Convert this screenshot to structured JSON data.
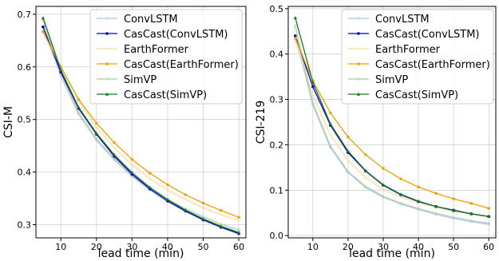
{
  "chart_data": [
    {
      "type": "line",
      "xlabel": "lead time (min)",
      "ylabel": "CSI-M",
      "xlim": [
        3,
        62
      ],
      "ylim": [
        0.275,
        0.715
      ],
      "xticks": [
        10,
        20,
        30,
        40,
        50,
        60
      ],
      "yticks": [
        0.3,
        0.4,
        0.5,
        0.6,
        0.7
      ],
      "ytick_labels": [
        "0.3",
        "0.4",
        "0.5",
        "0.6",
        "0.7"
      ],
      "grid": true,
      "legend_position": "top-right",
      "x": [
        5,
        10,
        15,
        20,
        25,
        30,
        35,
        40,
        45,
        50,
        55,
        60
      ],
      "series": [
        {
          "name": "ConvLSTM",
          "color": "#a9b7f0",
          "faded": true,
          "marker": "circle",
          "values": [
            0.676,
            0.583,
            0.51,
            0.461,
            0.424,
            0.392,
            0.366,
            0.344,
            0.326,
            0.311,
            0.297,
            0.285
          ]
        },
        {
          "name": "CasCast(ConvLSTM)",
          "color": "#0000cc",
          "faded": false,
          "marker": "circle",
          "values": [
            0.676,
            0.59,
            0.521,
            0.472,
            0.43,
            0.396,
            0.368,
            0.345,
            0.326,
            0.309,
            0.295,
            0.283
          ]
        },
        {
          "name": "EarthFormer",
          "color": "#f7d78c",
          "faded": true,
          "marker": "plus",
          "values": [
            0.667,
            0.598,
            0.535,
            0.485,
            0.446,
            0.414,
            0.387,
            0.366,
            0.348,
            0.332,
            0.319,
            0.308
          ]
        },
        {
          "name": "CasCast(EarthFormer)",
          "color": "#f0a000",
          "faded": false,
          "marker": "square",
          "values": [
            0.667,
            0.6,
            0.538,
            0.493,
            0.456,
            0.424,
            0.398,
            0.376,
            0.357,
            0.341,
            0.327,
            0.314
          ]
        },
        {
          "name": "SimVP",
          "color": "#9cc49c",
          "faded": true,
          "marker": "square",
          "values": [
            0.69,
            0.589,
            0.513,
            0.463,
            0.425,
            0.394,
            0.369,
            0.347,
            0.33,
            0.315,
            0.301,
            0.29
          ]
        },
        {
          "name": "CasCast(SimVP)",
          "color": "#1a7a1a",
          "faded": false,
          "marker": "triangle",
          "values": [
            0.693,
            0.594,
            0.523,
            0.474,
            0.433,
            0.399,
            0.371,
            0.348,
            0.328,
            0.311,
            0.297,
            0.285
          ]
        }
      ]
    },
    {
      "type": "line",
      "xlabel": "lead time (min)",
      "ylabel": "CSI-219",
      "xlim": [
        3,
        62
      ],
      "ylim": [
        -0.005,
        0.505
      ],
      "xticks": [
        10,
        20,
        30,
        40,
        50,
        60
      ],
      "yticks": [
        0.0,
        0.1,
        0.2,
        0.3,
        0.4,
        0.5
      ],
      "ytick_labels": [
        "0.0",
        "0.1",
        "0.2",
        "0.3",
        "0.4",
        "0.5"
      ],
      "grid": true,
      "legend_position": "top-right",
      "x": [
        5,
        10,
        15,
        20,
        25,
        30,
        35,
        40,
        45,
        50,
        55,
        60
      ],
      "series": [
        {
          "name": "ConvLSTM",
          "color": "#a9b7f0",
          "faded": true,
          "marker": "circle",
          "values": [
            0.44,
            0.29,
            0.196,
            0.14,
            0.108,
            0.086,
            0.071,
            0.059,
            0.049,
            0.04,
            0.033,
            0.027
          ]
        },
        {
          "name": "CasCast(ConvLSTM)",
          "color": "#0000cc",
          "faded": false,
          "marker": "circle",
          "values": [
            0.44,
            0.328,
            0.243,
            0.183,
            0.142,
            0.111,
            0.09,
            0.075,
            0.064,
            0.056,
            0.048,
            0.042
          ]
        },
        {
          "name": "EarthFormer",
          "color": "#f7d78c",
          "faded": true,
          "marker": "plus",
          "values": [
            0.431,
            0.31,
            0.222,
            0.165,
            0.128,
            0.102,
            0.085,
            0.072,
            0.063,
            0.055,
            0.048,
            0.042
          ]
        },
        {
          "name": "CasCast(EarthFormer)",
          "color": "#f0a000",
          "faded": false,
          "marker": "square",
          "values": [
            0.435,
            0.341,
            0.27,
            0.217,
            0.178,
            0.148,
            0.125,
            0.107,
            0.093,
            0.081,
            0.071,
            0.06
          ]
        },
        {
          "name": "SimVP",
          "color": "#9cc49c",
          "faded": true,
          "marker": "square",
          "values": [
            0.462,
            0.29,
            0.195,
            0.14,
            0.106,
            0.085,
            0.07,
            0.058,
            0.047,
            0.038,
            0.031,
            0.025
          ]
        },
        {
          "name": "CasCast(SimVP)",
          "color": "#1a7a1a",
          "faded": false,
          "marker": "triangle",
          "values": [
            0.48,
            0.338,
            0.246,
            0.186,
            0.143,
            0.112,
            0.091,
            0.076,
            0.064,
            0.055,
            0.048,
            0.042
          ]
        }
      ]
    }
  ]
}
